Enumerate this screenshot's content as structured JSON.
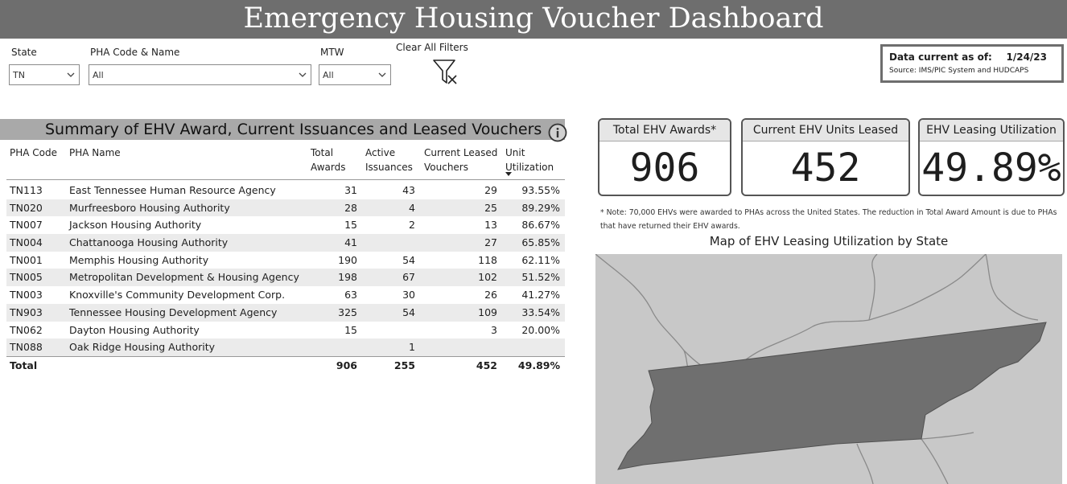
{
  "header": {
    "title": "Emergency Housing Voucher Dashboard"
  },
  "filters": {
    "state": {
      "label": "State",
      "value": "TN"
    },
    "pha": {
      "label": "PHA Code & Name",
      "value": "All"
    },
    "mtw": {
      "label": "MTW",
      "value": "All"
    },
    "clear_label": "Clear All Filters"
  },
  "data_current": {
    "label": "Data current as of:",
    "date": "1/24/23",
    "source": "Source: IMS/PIC System and HUDCAPS"
  },
  "summary": {
    "title": "Summary of EHV Award, Current Issuances and Leased Vouchers",
    "columns": {
      "code": "PHA Code",
      "name": "PHA Name",
      "total_1": "Total",
      "total_2": "Awards",
      "active_1": "Active",
      "active_2": "Issuances",
      "current_1": "Current Leased",
      "current_2": "Vouchers",
      "util_1": "Unit",
      "util_2": "Utilization"
    },
    "rows": [
      {
        "code": "TN113",
        "name": "East Tennessee Human Resource Agency",
        "total": "31",
        "active": "43",
        "current": "29",
        "util": "93.55%"
      },
      {
        "code": "TN020",
        "name": "Murfreesboro Housing Authority",
        "total": "28",
        "active": "4",
        "current": "25",
        "util": "89.29%"
      },
      {
        "code": "TN007",
        "name": "Jackson Housing Authority",
        "total": "15",
        "active": "2",
        "current": "13",
        "util": "86.67%"
      },
      {
        "code": "TN004",
        "name": "Chattanooga Housing Authority",
        "total": "41",
        "active": "",
        "current": "27",
        "util": "65.85%"
      },
      {
        "code": "TN001",
        "name": "Memphis Housing Authority",
        "total": "190",
        "active": "54",
        "current": "118",
        "util": "62.11%"
      },
      {
        "code": "TN005",
        "name": "Metropolitan Development & Housing Agency",
        "total": "198",
        "active": "67",
        "current": "102",
        "util": "51.52%"
      },
      {
        "code": "TN003",
        "name": "Knoxville's Community Development Corp.",
        "total": "63",
        "active": "30",
        "current": "26",
        "util": "41.27%"
      },
      {
        "code": "TN903",
        "name": "Tennessee Housing Development Agency",
        "total": "325",
        "active": "54",
        "current": "109",
        "util": "33.54%"
      },
      {
        "code": "TN062",
        "name": "Dayton Housing Authority",
        "total": "15",
        "active": "",
        "current": "3",
        "util": "20.00%"
      },
      {
        "code": "TN088",
        "name": "Oak Ridge Housing Authority",
        "total": "",
        "active": "1",
        "current": "",
        "util": ""
      }
    ],
    "total": {
      "label": "Total",
      "total": "906",
      "active": "255",
      "current": "452",
      "util": "49.89%"
    }
  },
  "kpis": {
    "awards": {
      "label": "Total EHV Awards*",
      "value": "906"
    },
    "leased": {
      "label": "Current EHV Units Leased",
      "value": "452"
    },
    "utilization": {
      "label": "EHV Leasing Utilization",
      "value": "49.89%"
    }
  },
  "note": "* Note: 70,000 EHVs were awarded to PHAs across the United States.  The reduction in Total Award Amount is due to PHAs that have returned their EHV awards.",
  "map": {
    "title": "Map of EHV Leasing Utilization by State"
  },
  "colors": {
    "title_bar": "#6e6e6e",
    "selected_state": "#6f6f6f",
    "other_states": "#c8c8c8",
    "state_border": "#7a7a7a"
  },
  "icons": {
    "dropdown": "chevron-down-icon",
    "clear_filters": "funnel-clear-icon",
    "info": "info-icon"
  }
}
